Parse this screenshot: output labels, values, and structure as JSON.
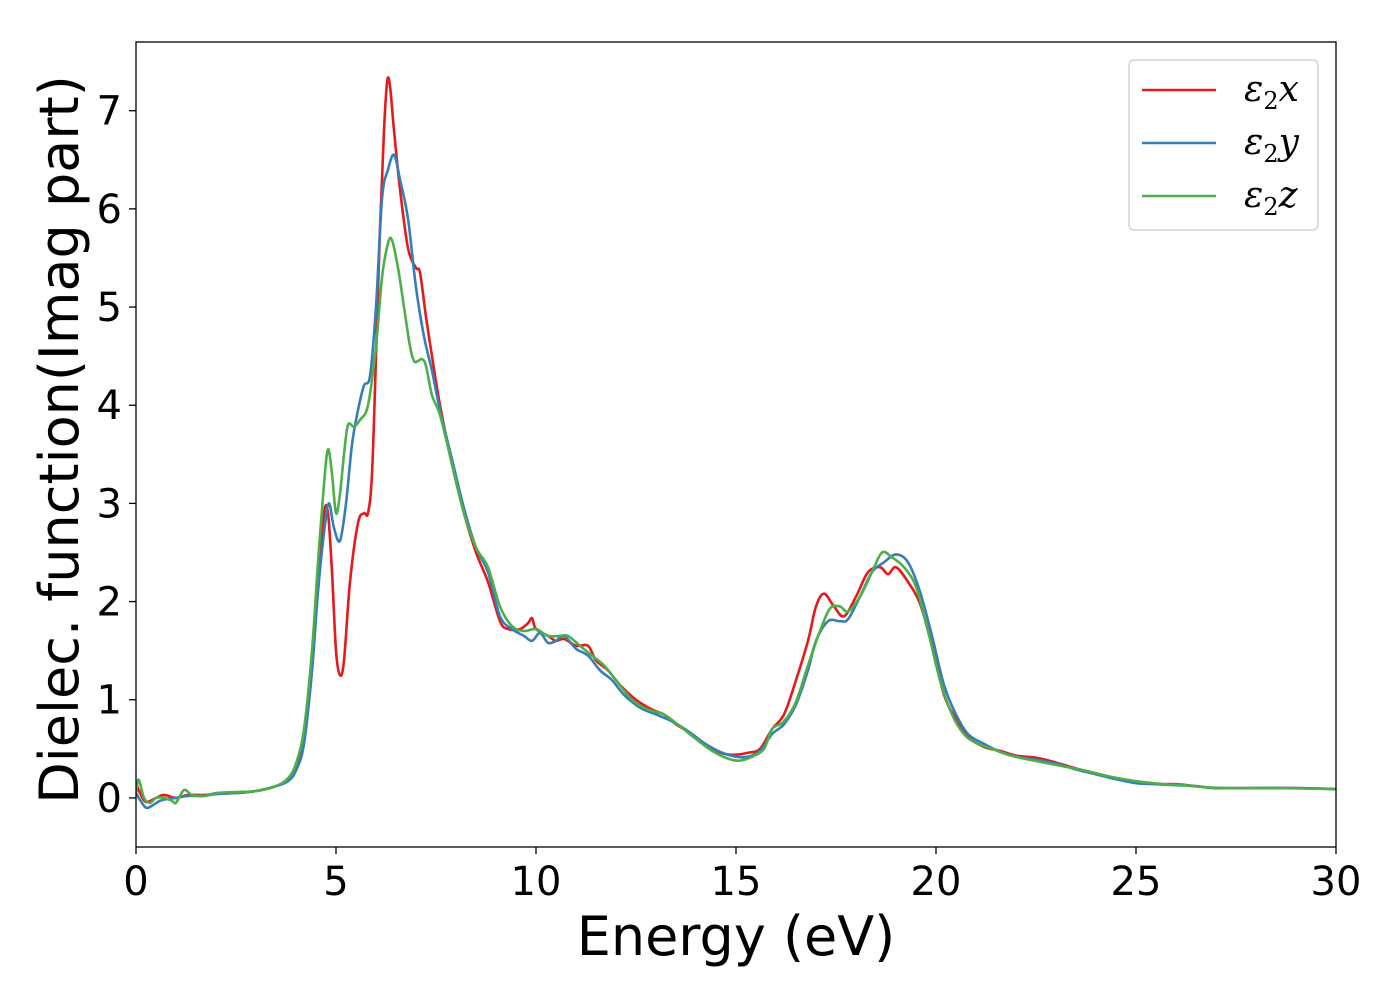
{
  "chart_data": {
    "type": "line",
    "xlabel": "Energy (eV)",
    "ylabel": "Dielec. function(Imag part)",
    "xlim": [
      0,
      30
    ],
    "ylim": [
      -0.5,
      7.7
    ],
    "xticks": [
      0,
      5,
      10,
      15,
      20,
      25,
      30
    ],
    "yticks": [
      0,
      1,
      2,
      3,
      4,
      5,
      6,
      7
    ],
    "grid": false,
    "legend_position": "top-right",
    "series": [
      {
        "name": "ε2x",
        "legend": {
          "base": "ε",
          "sub": "2",
          "var": "x"
        },
        "color": "#e41a1c",
        "points": [
          [
            0,
            0.15
          ],
          [
            0.1,
            0.05
          ],
          [
            0.25,
            -0.04
          ],
          [
            0.5,
            0.0
          ],
          [
            0.7,
            0.03
          ],
          [
            1.0,
            0.0
          ],
          [
            1.3,
            0.03
          ],
          [
            1.7,
            0.03
          ],
          [
            2.0,
            0.04
          ],
          [
            2.5,
            0.05
          ],
          [
            3.0,
            0.07
          ],
          [
            3.5,
            0.12
          ],
          [
            3.8,
            0.18
          ],
          [
            4.0,
            0.3
          ],
          [
            4.2,
            0.6
          ],
          [
            4.4,
            1.3
          ],
          [
            4.55,
            2.2
          ],
          [
            4.7,
            2.9
          ],
          [
            4.8,
            2.9
          ],
          [
            4.9,
            2.3
          ],
          [
            5.0,
            1.5
          ],
          [
            5.1,
            1.25
          ],
          [
            5.2,
            1.4
          ],
          [
            5.35,
            2.2
          ],
          [
            5.55,
            2.8
          ],
          [
            5.7,
            2.9
          ],
          [
            5.8,
            2.9
          ],
          [
            5.9,
            3.3
          ],
          [
            6.0,
            4.5
          ],
          [
            6.1,
            5.8
          ],
          [
            6.2,
            6.8
          ],
          [
            6.28,
            7.3
          ],
          [
            6.35,
            7.25
          ],
          [
            6.45,
            6.8
          ],
          [
            6.6,
            6.2
          ],
          [
            6.8,
            5.6
          ],
          [
            7.0,
            5.4
          ],
          [
            7.1,
            5.35
          ],
          [
            7.25,
            4.9
          ],
          [
            7.4,
            4.5
          ],
          [
            7.6,
            4.0
          ],
          [
            7.9,
            3.4
          ],
          [
            8.2,
            2.9
          ],
          [
            8.5,
            2.5
          ],
          [
            8.8,
            2.2
          ],
          [
            9.1,
            1.8
          ],
          [
            9.3,
            1.72
          ],
          [
            9.6,
            1.72
          ],
          [
            9.8,
            1.78
          ],
          [
            9.9,
            1.83
          ],
          [
            10.0,
            1.72
          ],
          [
            10.3,
            1.65
          ],
          [
            10.5,
            1.6
          ],
          [
            10.7,
            1.62
          ],
          [
            11.0,
            1.55
          ],
          [
            11.3,
            1.55
          ],
          [
            11.5,
            1.4
          ],
          [
            11.8,
            1.3
          ],
          [
            12.1,
            1.15
          ],
          [
            12.5,
            1.0
          ],
          [
            12.9,
            0.9
          ],
          [
            13.2,
            0.85
          ],
          [
            13.5,
            0.75
          ],
          [
            13.9,
            0.65
          ],
          [
            14.3,
            0.52
          ],
          [
            14.7,
            0.45
          ],
          [
            15.0,
            0.44
          ],
          [
            15.3,
            0.46
          ],
          [
            15.6,
            0.5
          ],
          [
            15.9,
            0.7
          ],
          [
            16.2,
            0.85
          ],
          [
            16.5,
            1.2
          ],
          [
            16.8,
            1.6
          ],
          [
            17.0,
            1.95
          ],
          [
            17.2,
            2.08
          ],
          [
            17.45,
            1.95
          ],
          [
            17.7,
            1.85
          ],
          [
            18.0,
            2.05
          ],
          [
            18.3,
            2.3
          ],
          [
            18.6,
            2.35
          ],
          [
            18.8,
            2.28
          ],
          [
            19.0,
            2.35
          ],
          [
            19.3,
            2.2
          ],
          [
            19.6,
            1.98
          ],
          [
            19.9,
            1.55
          ],
          [
            20.2,
            1.05
          ],
          [
            20.5,
            0.8
          ],
          [
            20.8,
            0.62
          ],
          [
            21.2,
            0.52
          ],
          [
            21.6,
            0.48
          ],
          [
            22.0,
            0.43
          ],
          [
            22.5,
            0.41
          ],
          [
            23.0,
            0.36
          ],
          [
            23.5,
            0.3
          ],
          [
            24.0,
            0.25
          ],
          [
            24.5,
            0.2
          ],
          [
            25.0,
            0.16
          ],
          [
            25.5,
            0.14
          ],
          [
            26.0,
            0.14
          ],
          [
            26.5,
            0.12
          ],
          [
            27.0,
            0.1
          ],
          [
            28.0,
            0.1
          ],
          [
            29.0,
            0.1
          ],
          [
            30.0,
            0.09
          ]
        ]
      },
      {
        "name": "ε2y",
        "legend": {
          "base": "ε",
          "sub": "2",
          "var": "y"
        },
        "color": "#377eb8",
        "points": [
          [
            0,
            0.05
          ],
          [
            0.1,
            -0.02
          ],
          [
            0.25,
            -0.1
          ],
          [
            0.4,
            -0.08
          ],
          [
            0.6,
            -0.03
          ],
          [
            0.8,
            -0.01
          ],
          [
            1.0,
            0.0
          ],
          [
            1.3,
            0.02
          ],
          [
            1.7,
            0.02
          ],
          [
            2.0,
            0.04
          ],
          [
            2.5,
            0.05
          ],
          [
            3.0,
            0.07
          ],
          [
            3.5,
            0.12
          ],
          [
            3.8,
            0.17
          ],
          [
            4.0,
            0.28
          ],
          [
            4.2,
            0.55
          ],
          [
            4.4,
            1.3
          ],
          [
            4.55,
            2.1
          ],
          [
            4.7,
            2.7
          ],
          [
            4.82,
            3.0
          ],
          [
            4.95,
            2.75
          ],
          [
            5.1,
            2.62
          ],
          [
            5.25,
            3.0
          ],
          [
            5.4,
            3.6
          ],
          [
            5.55,
            3.95
          ],
          [
            5.7,
            4.2
          ],
          [
            5.85,
            4.3
          ],
          [
            6.0,
            5.0
          ],
          [
            6.15,
            6.1
          ],
          [
            6.3,
            6.4
          ],
          [
            6.45,
            6.55
          ],
          [
            6.6,
            6.3
          ],
          [
            6.8,
            5.9
          ],
          [
            7.0,
            5.2
          ],
          [
            7.2,
            4.7
          ],
          [
            7.4,
            4.35
          ],
          [
            7.6,
            3.95
          ],
          [
            7.9,
            3.45
          ],
          [
            8.2,
            2.95
          ],
          [
            8.5,
            2.55
          ],
          [
            8.8,
            2.3
          ],
          [
            9.1,
            1.85
          ],
          [
            9.4,
            1.72
          ],
          [
            9.7,
            1.65
          ],
          [
            9.9,
            1.6
          ],
          [
            10.1,
            1.68
          ],
          [
            10.3,
            1.58
          ],
          [
            10.5,
            1.6
          ],
          [
            10.7,
            1.65
          ],
          [
            11.0,
            1.52
          ],
          [
            11.3,
            1.45
          ],
          [
            11.6,
            1.3
          ],
          [
            11.9,
            1.2
          ],
          [
            12.2,
            1.05
          ],
          [
            12.6,
            0.92
          ],
          [
            13.0,
            0.85
          ],
          [
            13.4,
            0.78
          ],
          [
            13.8,
            0.68
          ],
          [
            14.2,
            0.56
          ],
          [
            14.6,
            0.47
          ],
          [
            15.0,
            0.42
          ],
          [
            15.3,
            0.42
          ],
          [
            15.6,
            0.48
          ],
          [
            15.9,
            0.65
          ],
          [
            16.2,
            0.75
          ],
          [
            16.5,
            0.95
          ],
          [
            16.8,
            1.3
          ],
          [
            17.0,
            1.6
          ],
          [
            17.3,
            1.8
          ],
          [
            17.6,
            1.8
          ],
          [
            17.8,
            1.82
          ],
          [
            18.1,
            2.05
          ],
          [
            18.4,
            2.3
          ],
          [
            18.7,
            2.4
          ],
          [
            19.0,
            2.48
          ],
          [
            19.3,
            2.4
          ],
          [
            19.6,
            2.1
          ],
          [
            19.9,
            1.65
          ],
          [
            20.2,
            1.15
          ],
          [
            20.5,
            0.85
          ],
          [
            20.8,
            0.65
          ],
          [
            21.2,
            0.55
          ],
          [
            21.6,
            0.47
          ],
          [
            22.0,
            0.42
          ],
          [
            22.5,
            0.39
          ],
          [
            23.0,
            0.35
          ],
          [
            23.5,
            0.29
          ],
          [
            24.0,
            0.24
          ],
          [
            24.5,
            0.19
          ],
          [
            25.0,
            0.15
          ],
          [
            25.5,
            0.14
          ],
          [
            26.0,
            0.13
          ],
          [
            26.5,
            0.12
          ],
          [
            27.0,
            0.1
          ],
          [
            28.0,
            0.1
          ],
          [
            29.0,
            0.1
          ],
          [
            30.0,
            0.09
          ]
        ]
      },
      {
        "name": "ε2z",
        "legend": {
          "base": "ε",
          "sub": "2",
          "var": "z"
        },
        "color": "#4daf4a",
        "points": [
          [
            0,
            0.05
          ],
          [
            0.05,
            0.18
          ],
          [
            0.1,
            0.15
          ],
          [
            0.2,
            0.0
          ],
          [
            0.35,
            -0.05
          ],
          [
            0.5,
            0.0
          ],
          [
            0.7,
            0.0
          ],
          [
            0.9,
            -0.03
          ],
          [
            1.0,
            -0.05
          ],
          [
            1.2,
            0.08
          ],
          [
            1.4,
            0.03
          ],
          [
            1.7,
            0.02
          ],
          [
            2.0,
            0.05
          ],
          [
            2.5,
            0.06
          ],
          [
            3.0,
            0.07
          ],
          [
            3.5,
            0.12
          ],
          [
            3.8,
            0.2
          ],
          [
            4.0,
            0.35
          ],
          [
            4.2,
            0.7
          ],
          [
            4.4,
            1.5
          ],
          [
            4.55,
            2.4
          ],
          [
            4.7,
            3.2
          ],
          [
            4.8,
            3.55
          ],
          [
            4.9,
            3.3
          ],
          [
            5.0,
            2.9
          ],
          [
            5.1,
            3.1
          ],
          [
            5.2,
            3.5
          ],
          [
            5.3,
            3.8
          ],
          [
            5.45,
            3.78
          ],
          [
            5.6,
            3.85
          ],
          [
            5.8,
            4.0
          ],
          [
            6.0,
            4.6
          ],
          [
            6.15,
            5.3
          ],
          [
            6.3,
            5.65
          ],
          [
            6.4,
            5.68
          ],
          [
            6.55,
            5.4
          ],
          [
            6.7,
            5.0
          ],
          [
            6.85,
            4.6
          ],
          [
            6.95,
            4.45
          ],
          [
            7.05,
            4.45
          ],
          [
            7.15,
            4.47
          ],
          [
            7.25,
            4.4
          ],
          [
            7.4,
            4.1
          ],
          [
            7.6,
            3.9
          ],
          [
            7.9,
            3.4
          ],
          [
            8.2,
            2.9
          ],
          [
            8.5,
            2.55
          ],
          [
            8.8,
            2.35
          ],
          [
            9.1,
            1.95
          ],
          [
            9.4,
            1.75
          ],
          [
            9.7,
            1.7
          ],
          [
            10.0,
            1.72
          ],
          [
            10.3,
            1.65
          ],
          [
            10.6,
            1.65
          ],
          [
            10.8,
            1.65
          ],
          [
            11.1,
            1.55
          ],
          [
            11.4,
            1.45
          ],
          [
            11.7,
            1.35
          ],
          [
            12.0,
            1.2
          ],
          [
            12.4,
            1.0
          ],
          [
            12.8,
            0.9
          ],
          [
            13.2,
            0.85
          ],
          [
            13.6,
            0.73
          ],
          [
            14.0,
            0.6
          ],
          [
            14.4,
            0.48
          ],
          [
            14.8,
            0.4
          ],
          [
            15.1,
            0.38
          ],
          [
            15.4,
            0.42
          ],
          [
            15.7,
            0.5
          ],
          [
            15.9,
            0.7
          ],
          [
            16.2,
            0.78
          ],
          [
            16.5,
            0.98
          ],
          [
            16.8,
            1.35
          ],
          [
            17.1,
            1.7
          ],
          [
            17.35,
            1.93
          ],
          [
            17.6,
            1.95
          ],
          [
            17.8,
            1.9
          ],
          [
            18.1,
            2.05
          ],
          [
            18.4,
            2.3
          ],
          [
            18.65,
            2.5
          ],
          [
            18.9,
            2.45
          ],
          [
            19.2,
            2.35
          ],
          [
            19.5,
            2.15
          ],
          [
            19.8,
            1.7
          ],
          [
            20.1,
            1.2
          ],
          [
            20.4,
            0.85
          ],
          [
            20.7,
            0.65
          ],
          [
            21.0,
            0.56
          ],
          [
            21.4,
            0.5
          ],
          [
            21.8,
            0.44
          ],
          [
            22.2,
            0.4
          ],
          [
            22.7,
            0.36
          ],
          [
            23.2,
            0.32
          ],
          [
            23.7,
            0.28
          ],
          [
            24.2,
            0.23
          ],
          [
            24.7,
            0.19
          ],
          [
            25.2,
            0.16
          ],
          [
            25.7,
            0.14
          ],
          [
            26.2,
            0.13
          ],
          [
            26.7,
            0.11
          ],
          [
            27.5,
            0.1
          ],
          [
            28.5,
            0.1
          ],
          [
            30.0,
            0.09
          ]
        ]
      }
    ]
  }
}
